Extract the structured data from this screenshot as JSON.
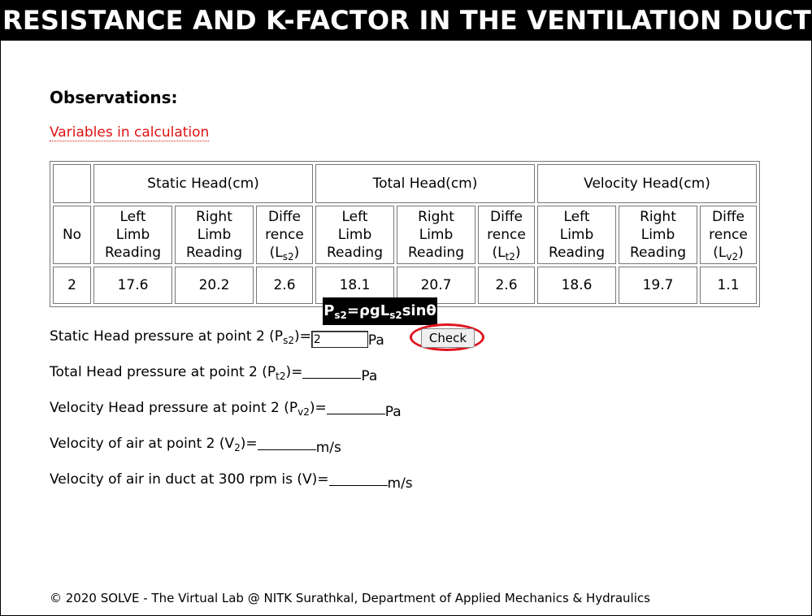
{
  "page": {
    "title": "RESISTANCE AND K-FACTOR IN THE VENTILATION DUCT",
    "observations_heading": "Observations:",
    "variables_link": "Variables in calculation"
  },
  "table": {
    "group_headers": [
      "Static Head(cm)",
      "Total Head(cm)",
      "Velocity Head(cm)"
    ],
    "no_header": "No",
    "left_header": [
      "Left",
      "Limb",
      "Reading"
    ],
    "right_header": [
      "Right",
      "Limb",
      "Reading"
    ],
    "diff_header": [
      "Diffe",
      "rence"
    ],
    "diff_symbols": [
      {
        "base": "(L",
        "sub": "s2",
        "close": ")"
      },
      {
        "base": "(L",
        "sub": "t2",
        "close": ")"
      },
      {
        "base": "(L",
        "sub": "v2",
        "close": ")"
      }
    ],
    "row": {
      "no": "2",
      "static_left": "17.6",
      "static_right": "20.2",
      "static_diff": "2.6",
      "total_left": "18.1",
      "total_right": "20.7",
      "total_diff": "2.6",
      "velocity_left": "18.6",
      "velocity_right": "19.7",
      "velocity_diff": "1.1"
    }
  },
  "tooltip": {
    "p": "P",
    "sub1": "s2",
    "mid": "=ρgL",
    "sub2": "s2",
    "end": "sinθ"
  },
  "questions": {
    "static": {
      "pre": "Static Head pressure at point 2 (P",
      "sub": "s2",
      "post": ")=",
      "value": "2",
      "unit": "Pa"
    },
    "total": {
      "pre": "Total Head pressure at point 2 (P",
      "sub": "t2",
      "post": ")=",
      "unit": "Pa"
    },
    "velocity": {
      "pre": "Velocity Head pressure at point 2 (P",
      "sub": "v2",
      "post": ")=",
      "unit": "Pa"
    },
    "vel_air": {
      "pre": "Velocity of air at point 2 (V",
      "sub": "2",
      "post": ")=",
      "unit": "m/s"
    },
    "vel_duct": {
      "pre": "Velocity of air in duct at 300 rpm is (V)=",
      "unit": "m/s"
    }
  },
  "check_button": "Check",
  "footer": "© 2020 SOLVE - The Virtual Lab @ NITK Surathkal, Department of Applied Mechanics & Hydraulics",
  "colors": {
    "link": "#e01010",
    "highlight_ring": "#e0141e",
    "title_bg": "#000000"
  }
}
